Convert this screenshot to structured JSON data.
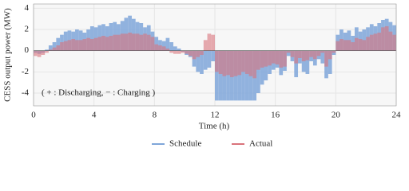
{
  "chart_data": {
    "type": "step-bar",
    "xlabel": "Time (h)",
    "ylabel": "CESS output power (MW)",
    "annotation": "( + : Discharging,  − : Charging )",
    "x": [
      0,
      0.25,
      0.5,
      0.75,
      1,
      1.25,
      1.5,
      1.75,
      2,
      2.25,
      2.5,
      2.75,
      3,
      3.25,
      3.5,
      3.75,
      4,
      4.25,
      4.5,
      4.75,
      5,
      5.25,
      5.5,
      5.75,
      6,
      6.25,
      6.5,
      6.75,
      7,
      7.25,
      7.5,
      7.75,
      8,
      8.25,
      8.5,
      8.75,
      9,
      9.25,
      9.5,
      9.75,
      10,
      10.25,
      10.5,
      10.75,
      11,
      11.25,
      11.5,
      11.75,
      12,
      12.25,
      12.5,
      12.75,
      13,
      13.25,
      13.5,
      13.75,
      14,
      14.25,
      14.5,
      14.75,
      15,
      15.25,
      15.5,
      15.75,
      16,
      16.25,
      16.5,
      16.75,
      17,
      17.25,
      17.5,
      17.75,
      18,
      18.25,
      18.5,
      18.75,
      19,
      19.25,
      19.5,
      19.75,
      20,
      20.25,
      20.5,
      20.75,
      21,
      21.25,
      21.5,
      21.75,
      22,
      22.25,
      22.5,
      22.75,
      23,
      23.25,
      23.5,
      23.75
    ],
    "series": [
      {
        "name": "Schedule",
        "color": "#7fa6d9",
        "values": [
          -0.2,
          -0.3,
          -0.2,
          0.1,
          0.5,
          0.8,
          1.2,
          1.5,
          1.8,
          1.9,
          1.8,
          2.0,
          1.9,
          1.7,
          2.0,
          2.3,
          2.2,
          2.4,
          2.5,
          2.3,
          2.6,
          2.7,
          2.5,
          2.8,
          3.1,
          3.3,
          3.0,
          2.7,
          2.6,
          2.2,
          2.4,
          1.8,
          1.3,
          1.0,
          0.9,
          1.2,
          0.8,
          0.4,
          0.2,
          -0.1,
          -0.4,
          -0.6,
          -1.5,
          -2.0,
          -2.2,
          -1.8,
          -1.6,
          -1.0,
          -4.7,
          -4.7,
          -4.7,
          -4.7,
          -4.7,
          -4.7,
          -4.7,
          -4.7,
          -4.7,
          -4.7,
          -4.7,
          -4.0,
          -3.2,
          -2.8,
          -2.2,
          -1.8,
          -1.6,
          -2.3,
          -1.9,
          -0.5,
          -1.0,
          -2.5,
          -1.2,
          -2.0,
          -2.2,
          -1.0,
          -1.4,
          -0.8,
          -1.2,
          -2.6,
          -2.2,
          -0.4,
          1.5,
          2.0,
          1.7,
          1.9,
          1.4,
          2.2,
          1.8,
          2.0,
          2.2,
          2.5,
          2.3,
          2.6,
          2.9,
          3.0,
          2.7,
          2.4
        ]
      },
      {
        "name": "Actual",
        "color": "#d9737b",
        "values": [
          -0.5,
          -0.6,
          -0.4,
          -0.2,
          0.1,
          0.3,
          0.5,
          0.8,
          0.9,
          1.0,
          1.1,
          1.0,
          1.0,
          1.1,
          1.2,
          1.1,
          1.2,
          1.3,
          1.4,
          1.3,
          1.4,
          1.5,
          1.5,
          1.6,
          1.6,
          1.7,
          1.6,
          1.6,
          1.5,
          1.6,
          1.5,
          1.3,
          0.6,
          0.5,
          0.4,
          0.2,
          -0.2,
          -0.3,
          -0.3,
          -0.2,
          -0.3,
          -0.5,
          -0.8,
          -0.6,
          -0.4,
          1.0,
          1.6,
          1.5,
          -2.0,
          -2.2,
          -2.4,
          -2.3,
          -2.5,
          -2.4,
          -2.3,
          -2.0,
          -2.2,
          -2.4,
          -2.6,
          -1.8,
          -1.6,
          -1.5,
          -1.4,
          -1.2,
          -1.3,
          -1.6,
          -1.5,
          -0.2,
          -0.6,
          -1.2,
          -0.7,
          -1.0,
          -0.9,
          -0.6,
          -0.8,
          -0.5,
          -0.2,
          -1.5,
          -0.8,
          -0.2,
          0.9,
          1.1,
          1.0,
          1.0,
          0.8,
          1.2,
          1.1,
          1.0,
          1.3,
          1.5,
          1.6,
          1.7,
          2.2,
          2.3,
          1.8,
          1.5
        ]
      }
    ],
    "xlim": [
      0,
      24
    ],
    "xticks": [
      0,
      4,
      8,
      12,
      16,
      20,
      24
    ],
    "ylim": [
      -5.2,
      4.4
    ],
    "yticks": [
      -4,
      -2,
      0,
      2,
      4
    ],
    "grid": true,
    "legend": "bottom"
  }
}
